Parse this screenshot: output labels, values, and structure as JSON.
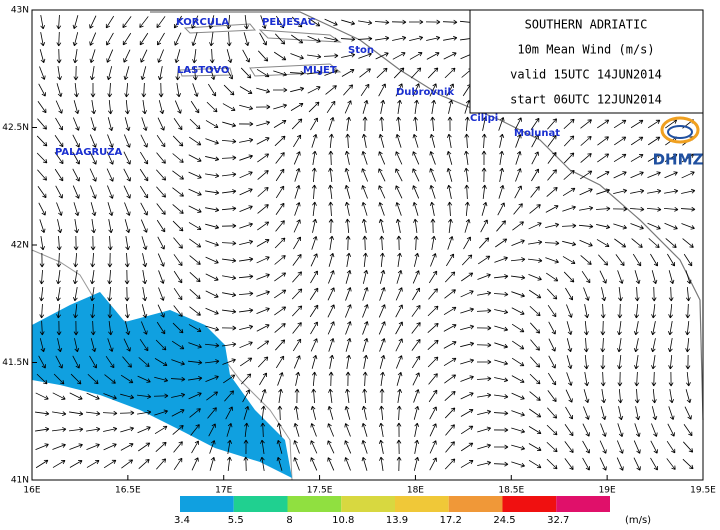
{
  "header": {
    "lines": [
      "SOUTHERN ADRIATIC",
      "10m  Mean Wind (m/s)",
      "valid 15UTC 14JUN2014",
      "start 06UTC 12JUN2014"
    ]
  },
  "logo": "DHMZ",
  "map": {
    "lat_ticks": [
      "43N",
      "42.5N",
      "42N",
      "41.5N",
      "41N"
    ],
    "lon_ticks": [
      "16E",
      "16.5E",
      "17E",
      "17.5E",
      "18E",
      "18.5E",
      "19E",
      "19.5E"
    ],
    "places": [
      "KORCULA",
      "PELJESAC",
      "Ston",
      "LASTOVO",
      "MLJET",
      "Dubrovnik",
      "Cilipi",
      "Molunat",
      "PALAGRUZA"
    ]
  },
  "legend": {
    "levels": [
      3.4,
      5.5,
      8,
      10.8,
      13.9,
      17.2,
      24.5,
      32.7
    ],
    "colors": [
      "#10a0e0",
      "#20d090",
      "#90e040",
      "#d8d840",
      "#f0c838",
      "#f09838",
      "#f01010",
      "#e0106a"
    ],
    "unit": "(m/s)"
  }
}
